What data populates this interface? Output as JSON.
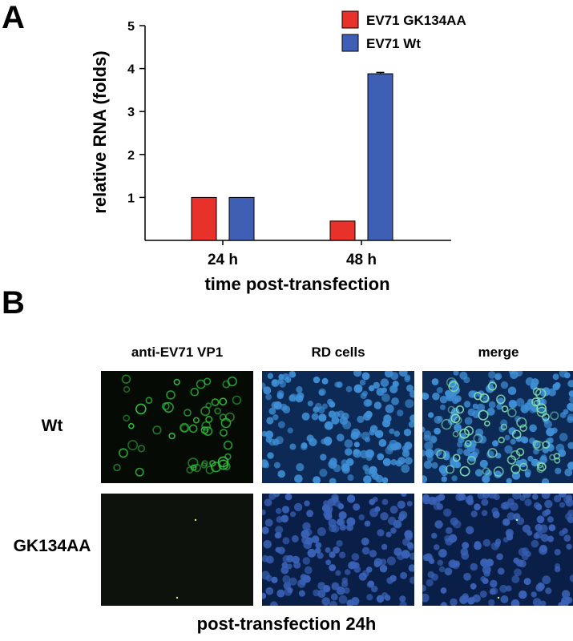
{
  "panel_a": {
    "letter": "A",
    "chart_data": {
      "type": "bar",
      "categories": [
        "24 h",
        "48 h"
      ],
      "series": [
        {
          "name": "EV71 GK134AA",
          "values": [
            1.0,
            0.45
          ],
          "color": "#e8312b"
        },
        {
          "name": "EV71 Wt",
          "values": [
            1.0,
            3.88
          ],
          "errors": [
            0.0,
            0.03
          ],
          "color": "#3f5fb5"
        }
      ],
      "title": "",
      "xlabel": "time post-transfection",
      "ylabel": "relative RNA (folds)",
      "ylim": [
        0,
        5
      ],
      "yticks": [
        "1",
        "2",
        "3",
        "4",
        "5"
      ],
      "grid": false,
      "legend_position": "top-right"
    }
  },
  "panel_b": {
    "letter": "B",
    "columns": [
      "anti-EV71 VP1",
      "RD cells",
      "merge"
    ],
    "rows": [
      "Wt",
      "GK134AA"
    ],
    "caption": "post-transfection 24h"
  }
}
